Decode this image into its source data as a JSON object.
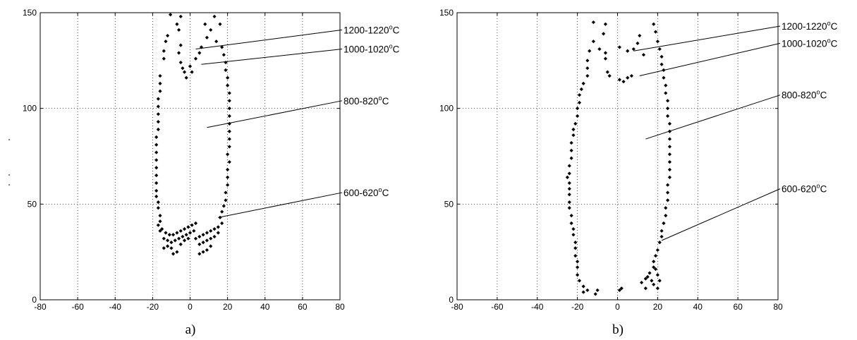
{
  "chart_data": [
    {
      "type": "scatter",
      "panel_label": "a)",
      "xlim": [
        -80,
        80
      ],
      "ylim": [
        0,
        150
      ],
      "xticks": [
        "-80",
        "-60",
        "-40",
        "-20",
        "0",
        "20",
        "40",
        "60",
        "80"
      ],
      "yticks": [
        "0",
        "50",
        "100",
        "150"
      ],
      "grid": true,
      "marker_color": "#000000",
      "annotations": [
        {
          "text": "1200-1220",
          "sup": "o",
          "unit": "C",
          "point": [
            3,
            131
          ],
          "anchor": [
            80,
            141
          ]
        },
        {
          "text": "1000-1020",
          "sup": "o",
          "unit": "C",
          "point": [
            6,
            123
          ],
          "anchor": [
            80,
            131
          ]
        },
        {
          "text": "800-820",
          "sup": "o",
          "unit": "C",
          "point": [
            9,
            90
          ],
          "anchor": [
            80,
            104
          ]
        },
        {
          "text": "600-620",
          "sup": "o",
          "unit": "C",
          "point": [
            15,
            43
          ],
          "anchor": [
            80,
            56
          ]
        }
      ],
      "points": [
        [
          -10.5,
          149
        ],
        [
          -5,
          148
        ],
        [
          -7,
          144
        ],
        [
          -6,
          141
        ],
        [
          -12,
          138
        ],
        [
          -13,
          135
        ],
        [
          -5,
          133
        ],
        [
          -14,
          130
        ],
        [
          -6,
          129
        ],
        [
          -14,
          126
        ],
        [
          -5,
          124
        ],
        [
          -4,
          121
        ],
        [
          -16,
          117
        ],
        [
          -3,
          119
        ],
        [
          -16,
          113
        ],
        [
          -2,
          116
        ],
        [
          -16,
          109
        ],
        [
          -17,
          105
        ],
        [
          -17,
          101
        ],
        [
          -17,
          97
        ],
        [
          -17,
          93
        ],
        [
          -17,
          89
        ],
        [
          -18,
          85
        ],
        [
          -18,
          81
        ],
        [
          -18,
          77
        ],
        [
          -18,
          73
        ],
        [
          -18,
          69
        ],
        [
          -18,
          65
        ],
        [
          -18,
          61
        ],
        [
          -18,
          57
        ],
        [
          -18,
          54
        ],
        [
          -17,
          51
        ],
        [
          -17,
          48
        ],
        [
          -16,
          44
        ],
        [
          -16,
          41
        ],
        [
          8,
          144
        ],
        [
          13,
          148
        ],
        [
          11,
          141
        ],
        [
          16,
          144
        ],
        [
          9,
          137
        ],
        [
          14,
          135
        ],
        [
          6,
          132
        ],
        [
          17,
          132
        ],
        [
          5,
          129
        ],
        [
          18,
          128
        ],
        [
          3,
          126
        ],
        [
          19,
          124
        ],
        [
          0,
          122
        ],
        [
          19,
          120
        ],
        [
          20,
          116
        ],
        [
          1,
          119
        ],
        [
          20,
          112
        ],
        [
          21,
          108
        ],
        [
          21,
          104
        ],
        [
          21,
          100
        ],
        [
          21,
          96
        ],
        [
          21,
          92
        ],
        [
          21,
          88
        ],
        [
          21,
          84
        ],
        [
          21,
          80
        ],
        [
          20,
          76
        ],
        [
          21,
          72
        ],
        [
          20,
          68
        ],
        [
          20,
          64
        ],
        [
          20,
          60
        ],
        [
          19,
          56
        ],
        [
          19,
          52
        ],
        [
          18,
          49
        ],
        [
          17,
          46
        ],
        [
          16,
          43
        ],
        [
          -17,
          39
        ],
        [
          -15,
          37
        ],
        [
          -13,
          35
        ],
        [
          -11,
          34
        ],
        [
          -9,
          34
        ],
        [
          -7,
          35
        ],
        [
          -5,
          36
        ],
        [
          -3,
          37
        ],
        [
          -1,
          38
        ],
        [
          1,
          39
        ],
        [
          3,
          40
        ],
        [
          -16,
          36
        ],
        [
          -14,
          32
        ],
        [
          -12,
          31
        ],
        [
          -10,
          30
        ],
        [
          -8,
          31
        ],
        [
          -6,
          32
        ],
        [
          -4,
          33
        ],
        [
          -2,
          34
        ],
        [
          0,
          35
        ],
        [
          2,
          36
        ],
        [
          -14,
          27
        ],
        [
          -12,
          28
        ],
        [
          -10,
          27
        ],
        [
          -9,
          24
        ],
        [
          -7,
          25
        ],
        [
          -5,
          29
        ],
        [
          -3,
          31
        ],
        [
          -1,
          32
        ],
        [
          3,
          32
        ],
        [
          5,
          33
        ],
        [
          7,
          34
        ],
        [
          9,
          35
        ],
        [
          11,
          36
        ],
        [
          13,
          37
        ],
        [
          15,
          38
        ],
        [
          17,
          40
        ],
        [
          5,
          29
        ],
        [
          7,
          30
        ],
        [
          9,
          31
        ],
        [
          11,
          32
        ],
        [
          13,
          33
        ],
        [
          15,
          35
        ],
        [
          5,
          24
        ],
        [
          7,
          25
        ],
        [
          9,
          26
        ],
        [
          11,
          28
        ]
      ]
    },
    {
      "type": "scatter",
      "panel_label": "b)",
      "xlim": [
        -80,
        80
      ],
      "ylim": [
        0,
        150
      ],
      "xticks": [
        "-80",
        "-60",
        "-40",
        "-20",
        "0",
        "20",
        "40",
        "60",
        "80"
      ],
      "yticks": [
        "0",
        "50",
        "100",
        "150"
      ],
      "grid": true,
      "marker_color": "#000000",
      "annotations": [
        {
          "text": "1200-1220",
          "sup": "o",
          "unit": "C",
          "point": [
            8,
            130
          ],
          "anchor": [
            80,
            143
          ]
        },
        {
          "text": "1000-1020",
          "sup": "o",
          "unit": "C",
          "point": [
            11,
            117
          ],
          "anchor": [
            80,
            134
          ]
        },
        {
          "text": "800-820",
          "sup": "o",
          "unit": "C",
          "point": [
            14,
            84
          ],
          "anchor": [
            80,
            107
          ]
        },
        {
          "text": "600-620",
          "sup": "o",
          "unit": "C",
          "point": [
            22,
            31
          ],
          "anchor": [
            80,
            58
          ]
        }
      ],
      "points": [
        [
          -12,
          145
        ],
        [
          -6,
          144
        ],
        [
          -7,
          139
        ],
        [
          -12,
          135
        ],
        [
          -9,
          131
        ],
        [
          -14,
          130
        ],
        [
          -6,
          129
        ],
        [
          -15,
          125
        ],
        [
          -6,
          126
        ],
        [
          -15,
          121
        ],
        [
          -5,
          119
        ],
        [
          -4,
          117
        ],
        [
          -15,
          117
        ],
        [
          -17,
          113
        ],
        [
          -18,
          110
        ],
        [
          -19,
          107
        ],
        [
          -19,
          103
        ],
        [
          -20,
          100
        ],
        [
          -20,
          96
        ],
        [
          -21,
          92
        ],
        [
          -22,
          89
        ],
        [
          -22,
          86
        ],
        [
          -23,
          82
        ],
        [
          -23,
          78
        ],
        [
          -23,
          74
        ],
        [
          -24,
          70
        ],
        [
          -24,
          66
        ],
        [
          -25,
          64
        ],
        [
          -24,
          61
        ],
        [
          -24,
          58
        ],
        [
          -24,
          55
        ],
        [
          -24,
          51
        ],
        [
          -24,
          48
        ],
        [
          -23,
          44
        ],
        [
          -23,
          40
        ],
        [
          -22,
          37
        ],
        [
          -22,
          34
        ],
        [
          -21,
          30
        ],
        [
          -21,
          27
        ],
        [
          -21,
          23
        ],
        [
          -20,
          20
        ],
        [
          -20,
          17
        ],
        [
          -20,
          13
        ],
        [
          -19,
          10
        ],
        [
          -17,
          7
        ],
        [
          -15,
          5
        ],
        [
          -17,
          4
        ],
        [
          -11,
          3
        ],
        [
          -10,
          5
        ],
        [
          1,
          132
        ],
        [
          11,
          138
        ],
        [
          18,
          144
        ],
        [
          10,
          134
        ],
        [
          19,
          140
        ],
        [
          5,
          130
        ],
        [
          13,
          128
        ],
        [
          20,
          135
        ],
        [
          8,
          131
        ],
        [
          21,
          131
        ],
        [
          22,
          127
        ],
        [
          7,
          117
        ],
        [
          22,
          123
        ],
        [
          5,
          116
        ],
        [
          23,
          120
        ],
        [
          3,
          114
        ],
        [
          23,
          116
        ],
        [
          1,
          115
        ],
        [
          24,
          112
        ],
        [
          24,
          108
        ],
        [
          25,
          104
        ],
        [
          25,
          100
        ],
        [
          25,
          96
        ],
        [
          26,
          92
        ],
        [
          26,
          88
        ],
        [
          26,
          84
        ],
        [
          26,
          80
        ],
        [
          26,
          76
        ],
        [
          26,
          72
        ],
        [
          26,
          68
        ],
        [
          26,
          64
        ],
        [
          25,
          60
        ],
        [
          25,
          56
        ],
        [
          25,
          52
        ],
        [
          24,
          48
        ],
        [
          24,
          44
        ],
        [
          23,
          40
        ],
        [
          22,
          36
        ],
        [
          22,
          33
        ],
        [
          21,
          30
        ],
        [
          20,
          26
        ],
        [
          19,
          23
        ],
        [
          18,
          20
        ],
        [
          18,
          17
        ],
        [
          16,
          14
        ],
        [
          14,
          11
        ],
        [
          12,
          9
        ],
        [
          14,
          6
        ],
        [
          20,
          6
        ],
        [
          21,
          10
        ],
        [
          20,
          13
        ],
        [
          19,
          16
        ],
        [
          18,
          8
        ],
        [
          17,
          10
        ],
        [
          15,
          12
        ],
        [
          1,
          5
        ],
        [
          2,
          6
        ]
      ]
    }
  ]
}
